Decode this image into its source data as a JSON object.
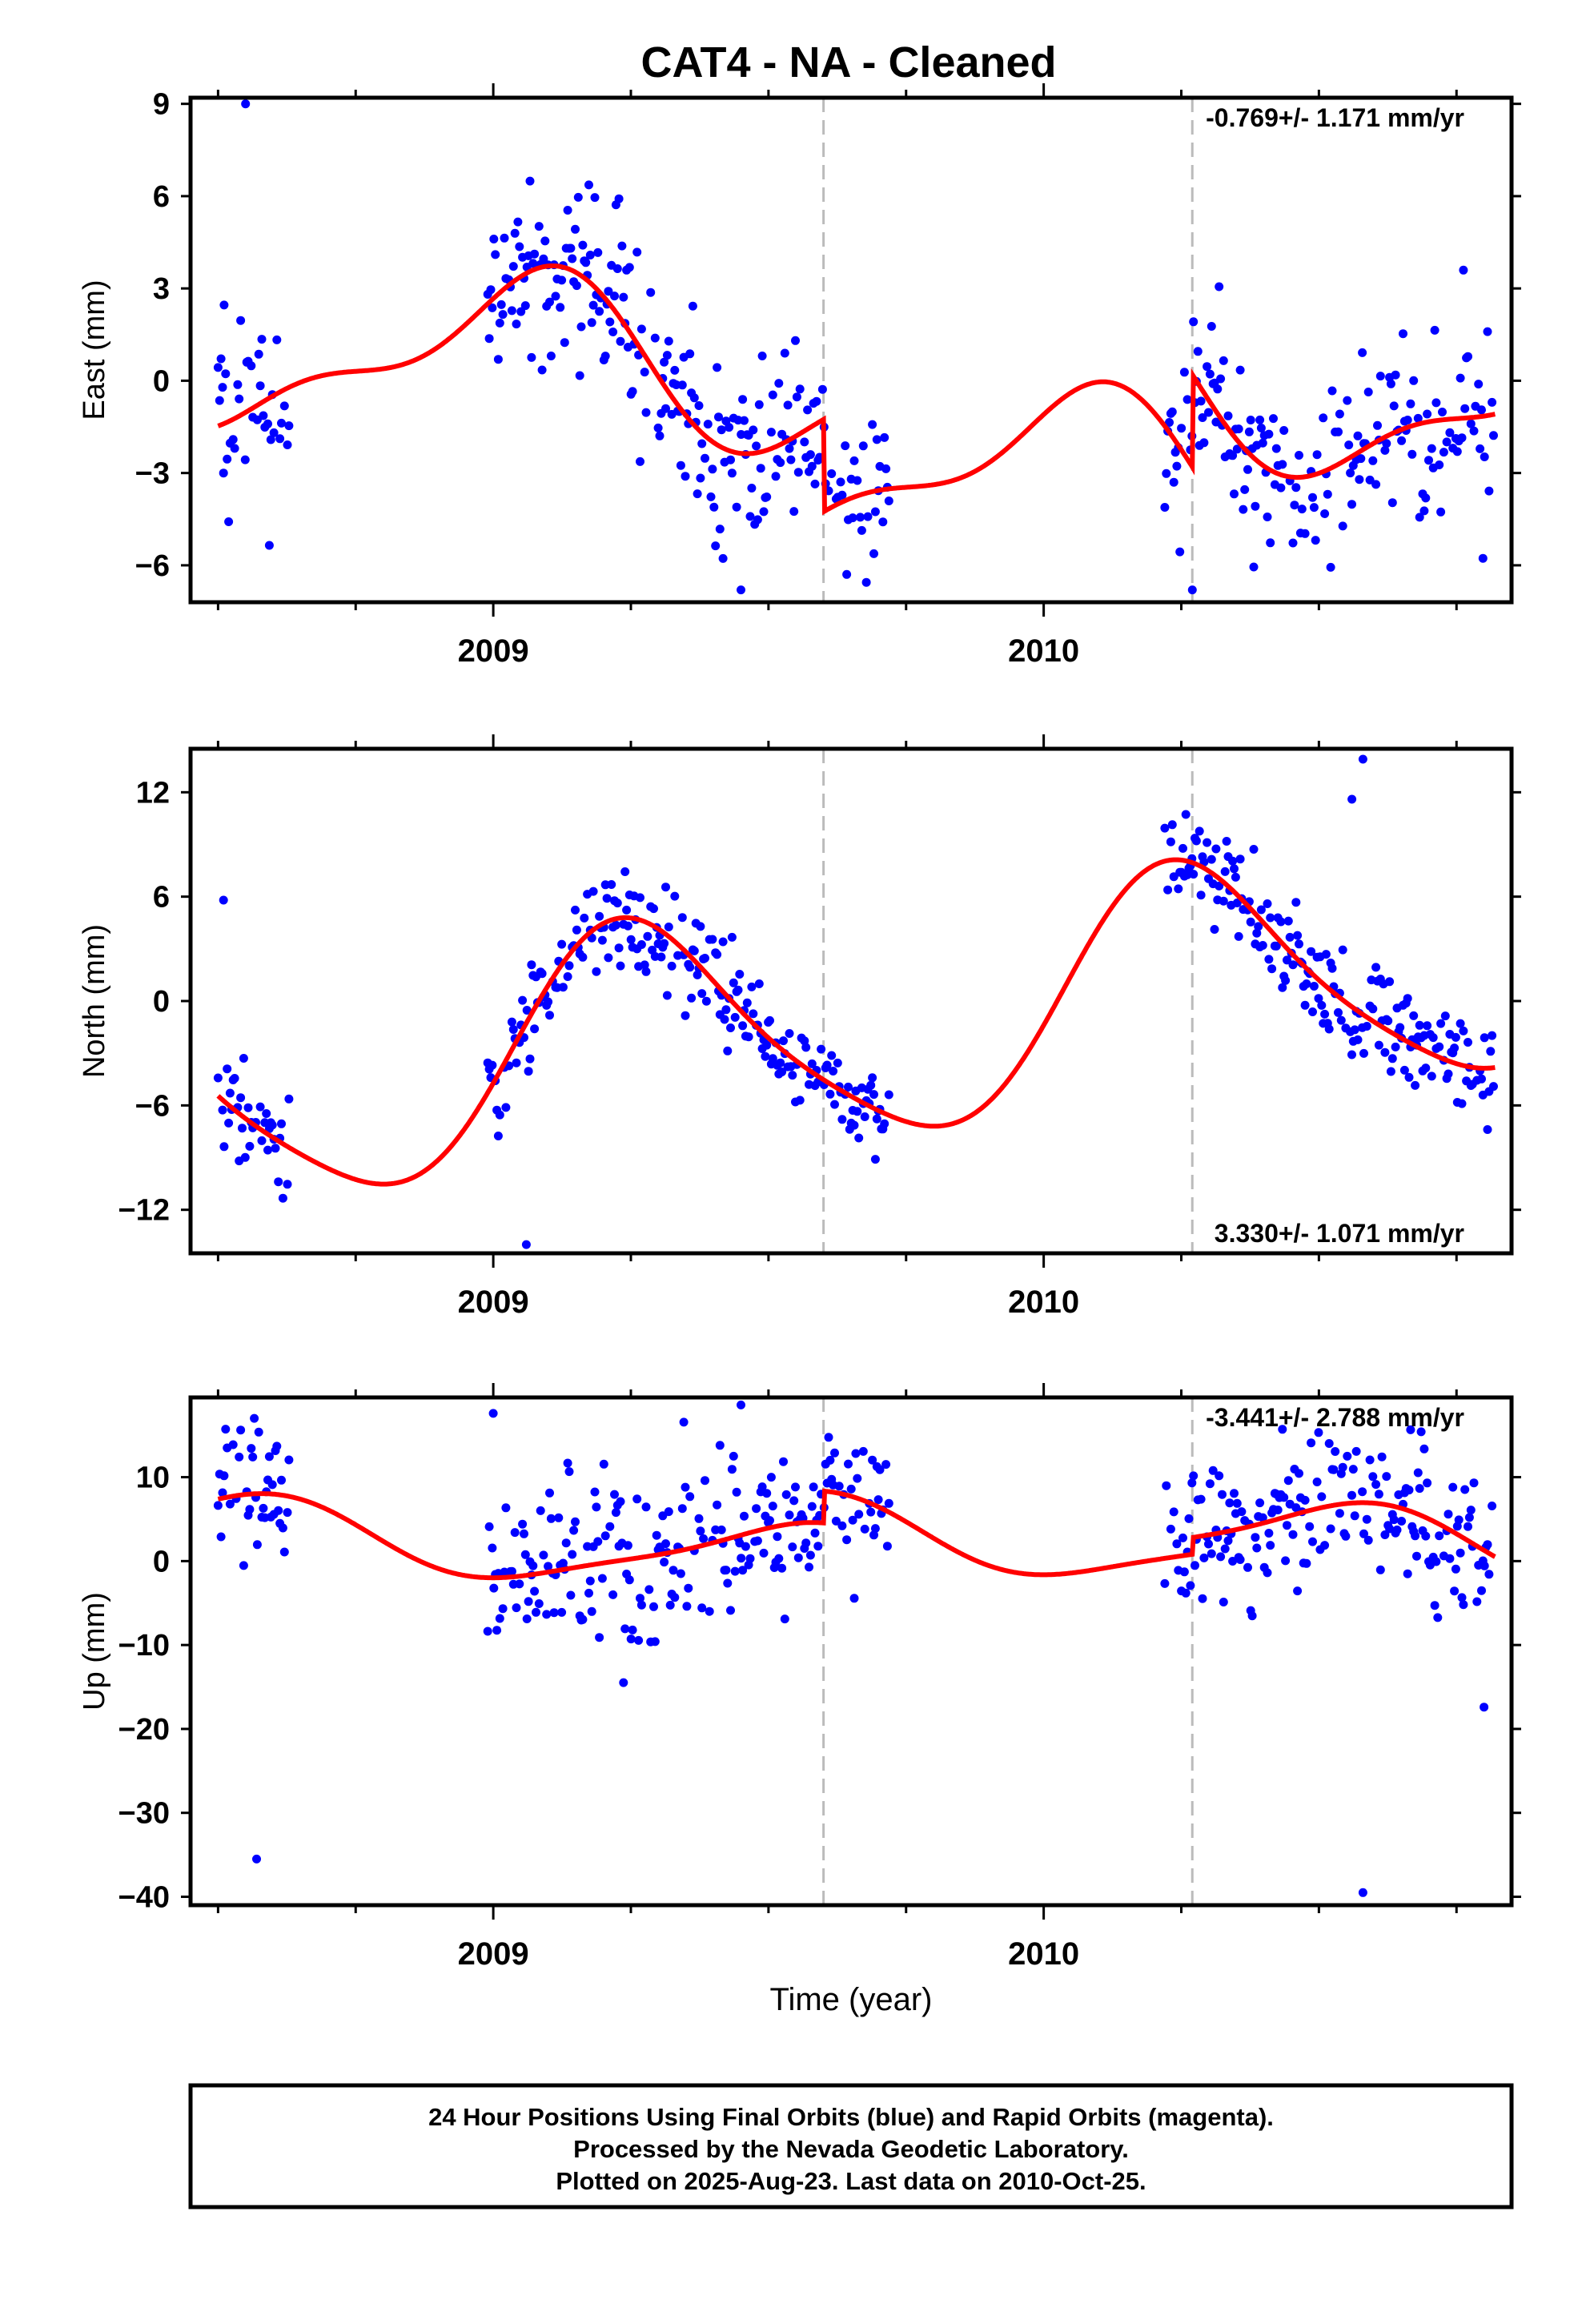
{
  "chart_data": {
    "type": "scatter",
    "title": "CAT4  - NA - Cleaned",
    "xlabel": "Time (year)",
    "xlim": [
      2008.45,
      2010.85
    ],
    "x_major_ticks": [
      2009,
      2010
    ],
    "x_minor_ticks": [
      2008.5,
      2008.75,
      2009.25,
      2009.5,
      2009.75,
      2010.25,
      2010.5,
      2010.75
    ],
    "offset_epochs": [
      2009.6,
      2010.27
    ],
    "colors": {
      "points": "#0000ff",
      "model": "#ff0000",
      "offsets": "#bbbbbb"
    },
    "panels": [
      {
        "id": "east",
        "ylabel": "East (mm)",
        "ylim": [
          -7.2,
          9.2
        ],
        "yticks": [
          -6,
          -3,
          0,
          3,
          6,
          9
        ],
        "ytick_labels": [
          "−6",
          "−3",
          "0",
          "3",
          "6",
          "9"
        ],
        "rate_text": "-0.769+/- 1.171 mm/yr",
        "rate_position": "top-right",
        "model": {
          "base": 0.2,
          "slope": -0.769,
          "a1": 2.4,
          "p1": 5.0,
          "a2": 1.0,
          "p2": 1.0,
          "offsets": [
            -3.0,
            3.0
          ]
        },
        "points": {
          "seed": 101,
          "noise": 1.5,
          "outliers": [
            [
              2008.51,
              -3.0
            ],
            [
              2008.55,
              9.0
            ],
            [
              2009.45,
              -6.8
            ],
            [
              2010.27,
              -6.8
            ]
          ]
        }
      },
      {
        "id": "north",
        "ylabel": "North (mm)",
        "ylim": [
          -14.5,
          14.5
        ],
        "yticks": [
          -12,
          -6,
          0,
          6,
          12
        ],
        "ytick_labels": [
          "−12",
          "−6",
          "0",
          "6",
          "12"
        ],
        "rate_text": "3.330+/- 1.071 mm/yr",
        "rate_position": "bottom-right",
        "model": {
          "base": -1.5,
          "slope": 3.33,
          "a1": 6.7,
          "p1": 3.7,
          "a2": 1.1,
          "p2": 0.5,
          "offsets": [
            0,
            0
          ]
        },
        "points": {
          "seed": 202,
          "noise": 1.5,
          "outliers": [
            [
              2008.51,
              5.8
            ],
            [
              2009.06,
              -14.0
            ],
            [
              2010.58,
              13.9
            ],
            [
              2010.56,
              11.6
            ]
          ]
        }
      },
      {
        "id": "up",
        "ylabel": "Up (mm)",
        "ylim": [
          -41,
          19.5
        ],
        "yticks": [
          -40,
          -30,
          -20,
          -10,
          0,
          10
        ],
        "ytick_labels": [
          "−40",
          "−30",
          "−20",
          "−10",
          "0",
          "10"
        ],
        "rate_text": "-3.441+/- 2.788 mm/yr",
        "rate_position": "top-right",
        "model": {
          "base": 0.0,
          "slope": -3.441,
          "a1": 4.0,
          "p1": 1.9,
          "a2": 0.9,
          "p2": 1.0,
          "offsets": [
            3.8,
            2.0
          ]
        },
        "points": {
          "seed": 303,
          "noise": 4.5,
          "outliers": [
            [
              2008.57,
              -35.5
            ],
            [
              2009.0,
              17.6
            ],
            [
              2009.45,
              18.6
            ],
            [
              2010.58,
              -39.5
            ],
            [
              2010.8,
              -17.4
            ]
          ]
        }
      }
    ],
    "footer_lines": [
      "24 Hour Positions Using Final Orbits (blue) and Rapid Orbits (magenta).",
      "Processed by the Nevada Geodetic Laboratory.",
      "Plotted on 2025-Aug-23. Last data on 2010-Oct-25."
    ]
  }
}
